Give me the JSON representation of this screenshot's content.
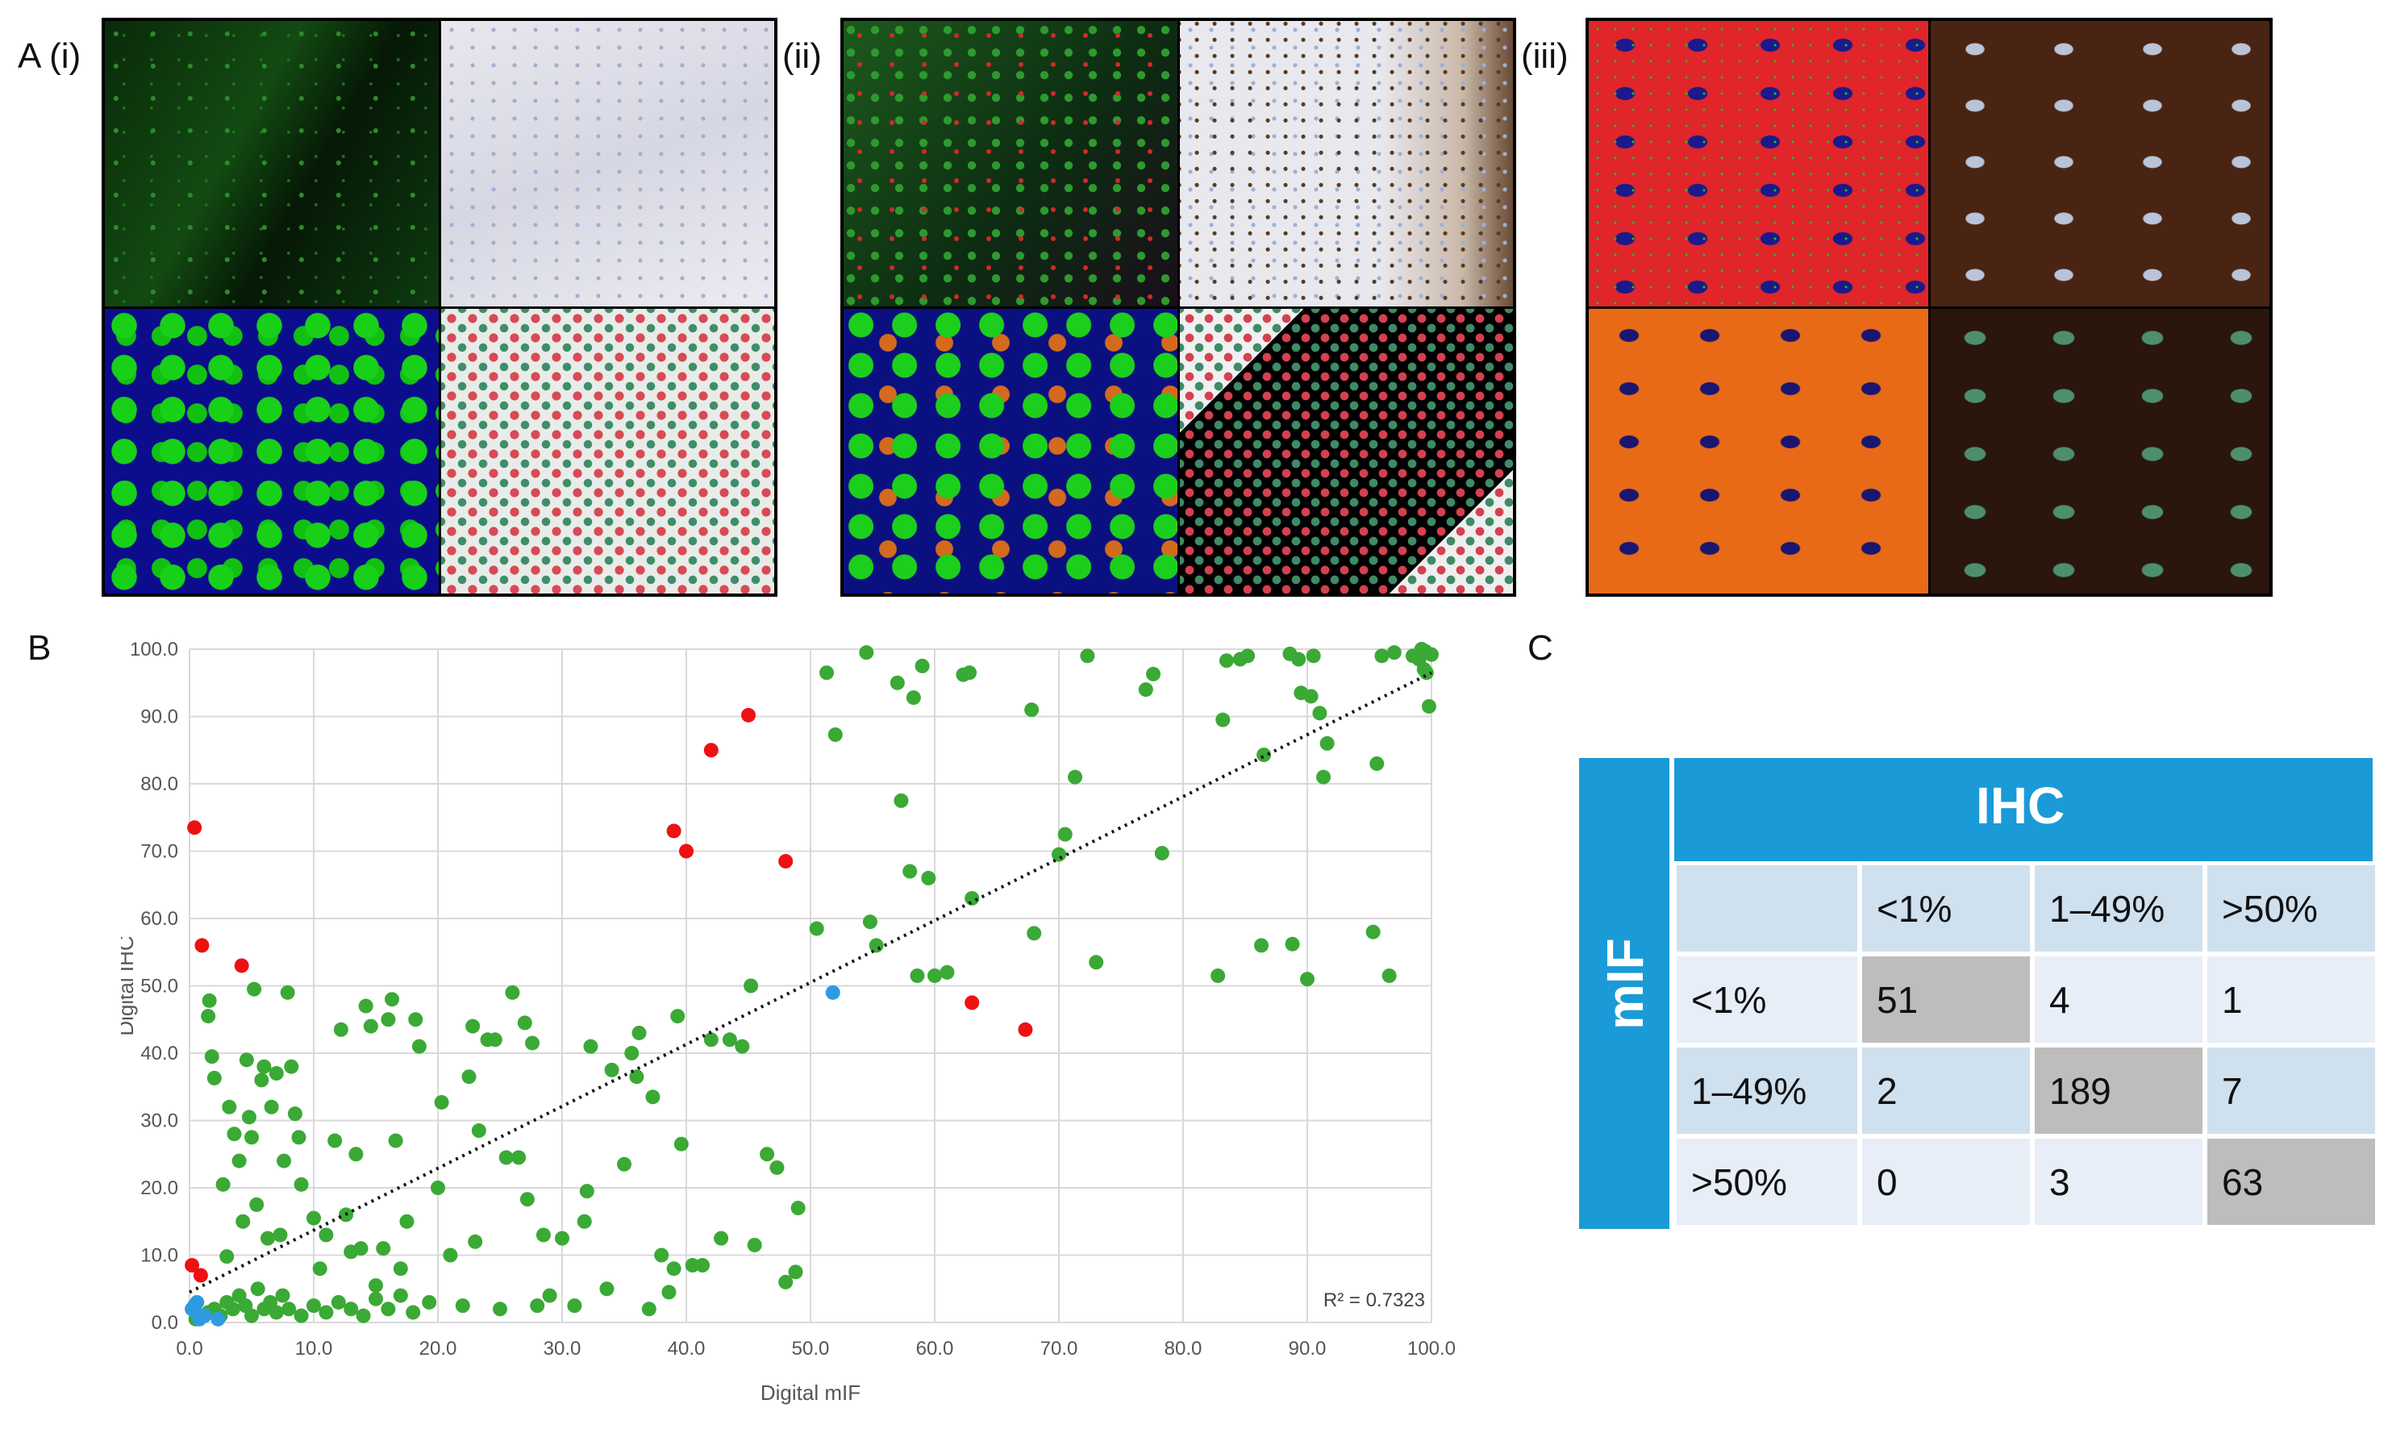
{
  "panel_labels": {
    "a_i": "A (i)",
    "a_ii": "(ii)",
    "a_iii": "(iii)",
    "b": "B",
    "c": "C"
  },
  "chart_data": {
    "type": "scatter",
    "xlabel": "Digital mIF",
    "ylabel": "Digital IHC",
    "xlim": [
      0,
      100
    ],
    "ylim": [
      0,
      100
    ],
    "xticks": [
      "0.0",
      "10.0",
      "20.0",
      "30.0",
      "40.0",
      "50.0",
      "60.0",
      "70.0",
      "80.0",
      "90.0",
      "100.0"
    ],
    "yticks": [
      "0.0",
      "10.0",
      "20.0",
      "30.0",
      "40.0",
      "50.0",
      "60.0",
      "70.0",
      "80.0",
      "90.0",
      "100.0"
    ],
    "grid": true,
    "annotation": "R² = 0.7323",
    "trendline": {
      "x0": 0,
      "y0": 4.5,
      "x1": 100,
      "y1": 96.5,
      "style": "dotted"
    },
    "colors": {
      "green": "#3aa935",
      "red": "#ee1111",
      "blue": "#2e9ae0",
      "trend": "#111111",
      "grid": "#d9d9d9"
    },
    "series": [
      {
        "color": "red",
        "points": [
          [
            0.2,
            8.5
          ],
          [
            0.4,
            73.5
          ],
          [
            0.9,
            7
          ],
          [
            1,
            56
          ],
          [
            4.2,
            53
          ],
          [
            39,
            73
          ],
          [
            40,
            70
          ],
          [
            42,
            85
          ],
          [
            45,
            90.2
          ],
          [
            48,
            68.5
          ],
          [
            63,
            47.5
          ],
          [
            67.3,
            43.5
          ]
        ]
      },
      {
        "color": "blue",
        "points": [
          [
            0.2,
            2
          ],
          [
            0.4,
            2.5
          ],
          [
            0.6,
            3
          ],
          [
            0.8,
            0.5
          ],
          [
            1.2,
            1
          ],
          [
            2.3,
            0.5
          ],
          [
            51.8,
            49
          ]
        ]
      },
      {
        "color": "green",
        "points": [
          [
            0.5,
            0.5
          ],
          [
            1,
            1
          ],
          [
            1.5,
            1.5
          ],
          [
            2,
            2
          ],
          [
            2.5,
            1
          ],
          [
            3,
            3
          ],
          [
            3.5,
            2
          ],
          [
            4,
            4
          ],
          [
            4.5,
            2.5
          ],
          [
            5,
            1
          ],
          [
            5.5,
            5
          ],
          [
            6,
            2
          ],
          [
            6.5,
            3
          ],
          [
            7,
            1.5
          ],
          [
            7.5,
            4
          ],
          [
            8,
            2
          ],
          [
            9,
            1
          ],
          [
            10,
            2.5
          ],
          [
            11,
            1.5
          ],
          [
            12,
            3
          ],
          [
            13,
            2
          ],
          [
            14,
            1
          ],
          [
            15,
            3.5
          ],
          [
            16,
            2
          ],
          [
            17,
            4
          ],
          [
            18,
            1.5
          ],
          [
            1.5,
            45.5
          ],
          [
            1.6,
            47.8
          ],
          [
            1.8,
            39.5
          ],
          [
            2,
            36.3
          ],
          [
            2.7,
            20.5
          ],
          [
            3,
            9.8
          ],
          [
            3.2,
            32
          ],
          [
            3.6,
            28
          ],
          [
            4,
            24
          ],
          [
            4.3,
            15
          ],
          [
            4.6,
            39
          ],
          [
            4.8,
            30.5
          ],
          [
            5,
            27.5
          ],
          [
            5.2,
            49.5
          ],
          [
            5.4,
            17.5
          ],
          [
            5.8,
            36
          ],
          [
            6,
            38
          ],
          [
            6.3,
            12.5
          ],
          [
            6.6,
            32
          ],
          [
            7,
            37
          ],
          [
            7.3,
            13
          ],
          [
            7.6,
            24
          ],
          [
            7.9,
            49
          ],
          [
            8.2,
            38
          ],
          [
            8.5,
            31
          ],
          [
            8.8,
            27.5
          ],
          [
            9,
            20.5
          ],
          [
            10,
            15.5
          ],
          [
            10.5,
            8
          ],
          [
            11,
            13
          ],
          [
            11.7,
            27
          ],
          [
            12.2,
            43.5
          ],
          [
            12.6,
            16
          ],
          [
            13,
            10.5
          ],
          [
            13.4,
            25
          ],
          [
            13.8,
            11
          ],
          [
            14.2,
            47
          ],
          [
            14.6,
            44
          ],
          [
            15,
            5.5
          ],
          [
            15.6,
            11
          ],
          [
            16,
            45
          ],
          [
            16.3,
            48
          ],
          [
            16.6,
            27
          ],
          [
            17,
            8
          ],
          [
            17.5,
            15
          ],
          [
            18.2,
            45
          ],
          [
            18.5,
            41
          ],
          [
            19.3,
            3
          ],
          [
            20,
            20
          ],
          [
            20.3,
            32.7
          ],
          [
            21,
            10
          ],
          [
            22,
            2.5
          ],
          [
            22.5,
            36.5
          ],
          [
            22.8,
            44
          ],
          [
            23,
            12
          ],
          [
            23.3,
            28.5
          ],
          [
            24,
            42
          ],
          [
            24.6,
            42
          ],
          [
            25,
            2
          ],
          [
            25.5,
            24.5
          ],
          [
            26,
            49
          ],
          [
            26.5,
            24.5
          ],
          [
            27,
            44.5
          ],
          [
            27.2,
            18.3
          ],
          [
            27.6,
            41.5
          ],
          [
            28,
            2.5
          ],
          [
            28.5,
            13
          ],
          [
            29,
            4
          ],
          [
            30,
            12.5
          ],
          [
            31,
            2.5
          ],
          [
            31.8,
            15
          ],
          [
            32,
            19.5
          ],
          [
            32.3,
            41
          ],
          [
            33.6,
            5
          ],
          [
            34,
            37.5
          ],
          [
            35,
            23.5
          ],
          [
            35.6,
            40
          ],
          [
            36,
            36.5
          ],
          [
            36.2,
            43
          ],
          [
            37,
            2
          ],
          [
            37.3,
            33.5
          ],
          [
            38,
            10
          ],
          [
            38.6,
            4.5
          ],
          [
            39,
            8
          ],
          [
            39.3,
            45.5
          ],
          [
            39.6,
            26.5
          ],
          [
            40.5,
            8.5
          ],
          [
            41.3,
            8.5
          ],
          [
            42,
            42
          ],
          [
            42.8,
            12.5
          ],
          [
            43.5,
            42
          ],
          [
            44.5,
            41
          ],
          [
            45.2,
            50
          ],
          [
            45.5,
            11.5
          ],
          [
            46.5,
            25
          ],
          [
            47.3,
            23
          ],
          [
            48,
            6
          ],
          [
            48.8,
            7.5
          ],
          [
            49,
            17
          ],
          [
            50.5,
            58.5
          ],
          [
            51.3,
            96.5
          ],
          [
            52,
            87.3
          ],
          [
            54.5,
            99.5
          ],
          [
            54.8,
            59.5
          ],
          [
            55.3,
            56
          ],
          [
            57,
            95
          ],
          [
            57.3,
            77.5
          ],
          [
            58,
            67
          ],
          [
            58.3,
            92.8
          ],
          [
            58.6,
            51.5
          ],
          [
            59,
            97.5
          ],
          [
            59.5,
            66
          ],
          [
            60,
            51.5
          ],
          [
            61,
            52
          ],
          [
            62.3,
            96.2
          ],
          [
            62.8,
            96.5
          ],
          [
            63,
            63
          ],
          [
            67.8,
            91
          ],
          [
            68,
            57.8
          ],
          [
            70,
            69.5
          ],
          [
            70.5,
            72.5
          ],
          [
            71.3,
            81
          ],
          [
            72.3,
            99
          ],
          [
            73,
            53.5
          ],
          [
            77,
            94
          ],
          [
            77.6,
            96.3
          ],
          [
            78.3,
            69.7
          ],
          [
            82.8,
            51.5
          ],
          [
            83.2,
            89.5
          ],
          [
            83.5,
            98.3
          ],
          [
            84.6,
            98.5
          ],
          [
            85.2,
            99
          ],
          [
            86.3,
            56
          ],
          [
            86.5,
            84.3
          ],
          [
            88.6,
            99.3
          ],
          [
            88.8,
            56.2
          ],
          [
            89.3,
            98.5
          ],
          [
            89.5,
            93.5
          ],
          [
            90,
            51
          ],
          [
            90.3,
            93
          ],
          [
            90.5,
            99
          ],
          [
            91,
            90.5
          ],
          [
            91.3,
            81
          ],
          [
            91.6,
            86
          ],
          [
            95.3,
            58
          ],
          [
            95.6,
            83
          ],
          [
            96,
            99
          ],
          [
            96.6,
            51.5
          ],
          [
            97,
            99.5
          ],
          [
            98.5,
            99
          ],
          [
            99,
            98.5
          ],
          [
            99.2,
            100
          ],
          [
            99.4,
            97
          ],
          [
            99.5,
            99.7
          ],
          [
            99.6,
            96.5
          ],
          [
            99.8,
            91.5
          ],
          [
            100,
            99.2
          ]
        ]
      }
    ]
  },
  "table_c": {
    "col_header": "IHC",
    "row_header": "mIF",
    "columns": [
      "",
      "<1%",
      "1–49%",
      ">50%"
    ],
    "rows": [
      {
        "label": "<1%",
        "values": [
          "51",
          "4",
          "1"
        ]
      },
      {
        "label": "1–49%",
        "values": [
          "2",
          "189",
          "7"
        ]
      },
      {
        "label": ">50%",
        "values": [
          "0",
          "3",
          "63"
        ]
      }
    ],
    "colors": {
      "header": "#1b9ad8",
      "cell_dark": "#cfe0ef",
      "cell_light": "#e7eef7",
      "diagonal": "#bdbdbd"
    }
  },
  "image_panels": [
    {
      "id": "i",
      "tiles": [
        "green fluorescence",
        "light IHC",
        "green segmentation",
        "red/green classification"
      ]
    },
    {
      "id": "ii",
      "tiles": [
        "mixed fluorescence",
        "IHC with brown edge",
        "green/orange segmentation",
        "red/green classification"
      ]
    },
    {
      "id": "iii",
      "tiles": [
        "red fluorescence",
        "dark brown IHC",
        "orange segmentation",
        "green classification on brown"
      ]
    }
  ]
}
